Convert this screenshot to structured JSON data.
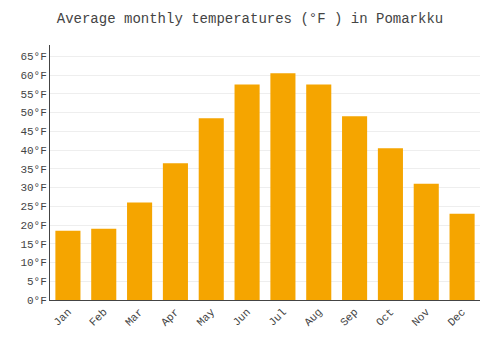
{
  "chart_data": {
    "type": "bar",
    "title": "Average monthly temperatures (°F ) in Pomarkku",
    "categories": [
      "Jan",
      "Feb",
      "Mar",
      "Apr",
      "May",
      "Jun",
      "Jul",
      "Aug",
      "Sep",
      "Oct",
      "Nov",
      "Dec"
    ],
    "values": [
      18.5,
      19.0,
      26.0,
      36.5,
      48.5,
      57.5,
      60.5,
      57.5,
      49.0,
      40.5,
      31.0,
      23.0
    ],
    "color": "#F5A500",
    "ylim": [
      0,
      68
    ],
    "yticks": [
      {
        "value": 0,
        "label": "0°F"
      },
      {
        "value": 5,
        "label": "5°F"
      },
      {
        "value": 10,
        "label": "10°F"
      },
      {
        "value": 15,
        "label": "15°F"
      },
      {
        "value": 20,
        "label": "20°F"
      },
      {
        "value": 25,
        "label": "25°F"
      },
      {
        "value": 30,
        "label": "30°F"
      },
      {
        "value": 35,
        "label": "35°F"
      },
      {
        "value": 40,
        "label": "40°F"
      },
      {
        "value": 45,
        "label": "45°F"
      },
      {
        "value": 50,
        "label": "50°F"
      },
      {
        "value": 55,
        "label": "55°F"
      },
      {
        "value": 60,
        "label": "60°F"
      },
      {
        "value": 65,
        "label": "65°F"
      }
    ],
    "grid": true
  }
}
